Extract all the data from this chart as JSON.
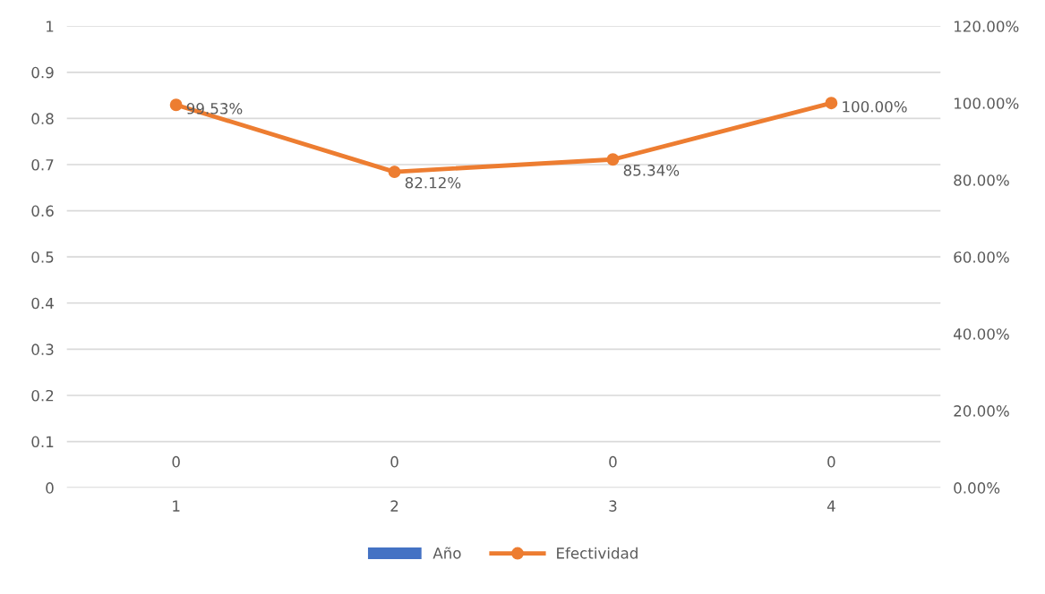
{
  "chart_data": {
    "type": "bar",
    "categories": [
      "1",
      "2",
      "3",
      "4"
    ],
    "series": [
      {
        "name": "Año",
        "color": "#4472c4",
        "values": [
          0,
          0,
          0,
          0
        ],
        "value_labels": [
          "0",
          "0",
          "0",
          "0"
        ]
      },
      {
        "name": "Efectividad",
        "type": "line",
        "axis": "y2",
        "color": "#ed7d31",
        "marker": "circle",
        "values": [
          99.53,
          82.12,
          85.34,
          100.0
        ],
        "value_labels": [
          "99.53%",
          "82.12%",
          "85.34%",
          "100.00%"
        ]
      }
    ],
    "ylim": [
      0,
      1
    ],
    "yticks": [
      0,
      0.1,
      0.2,
      0.3,
      0.4,
      0.5,
      0.6,
      0.7,
      0.8,
      0.9,
      1
    ],
    "y2lim": [
      0,
      120
    ],
    "y2ticks": [
      {
        "value": 0,
        "label": "0.00%"
      },
      {
        "value": 20,
        "label": "20.00%"
      },
      {
        "value": 40,
        "label": "40.00%"
      },
      {
        "value": 60,
        "label": "60.00%"
      },
      {
        "value": 80,
        "label": "80.00%"
      },
      {
        "value": 100,
        "label": "100.00%"
      },
      {
        "value": 120,
        "label": "120.00%"
      }
    ],
    "grid": "y",
    "legend": "bottom"
  }
}
